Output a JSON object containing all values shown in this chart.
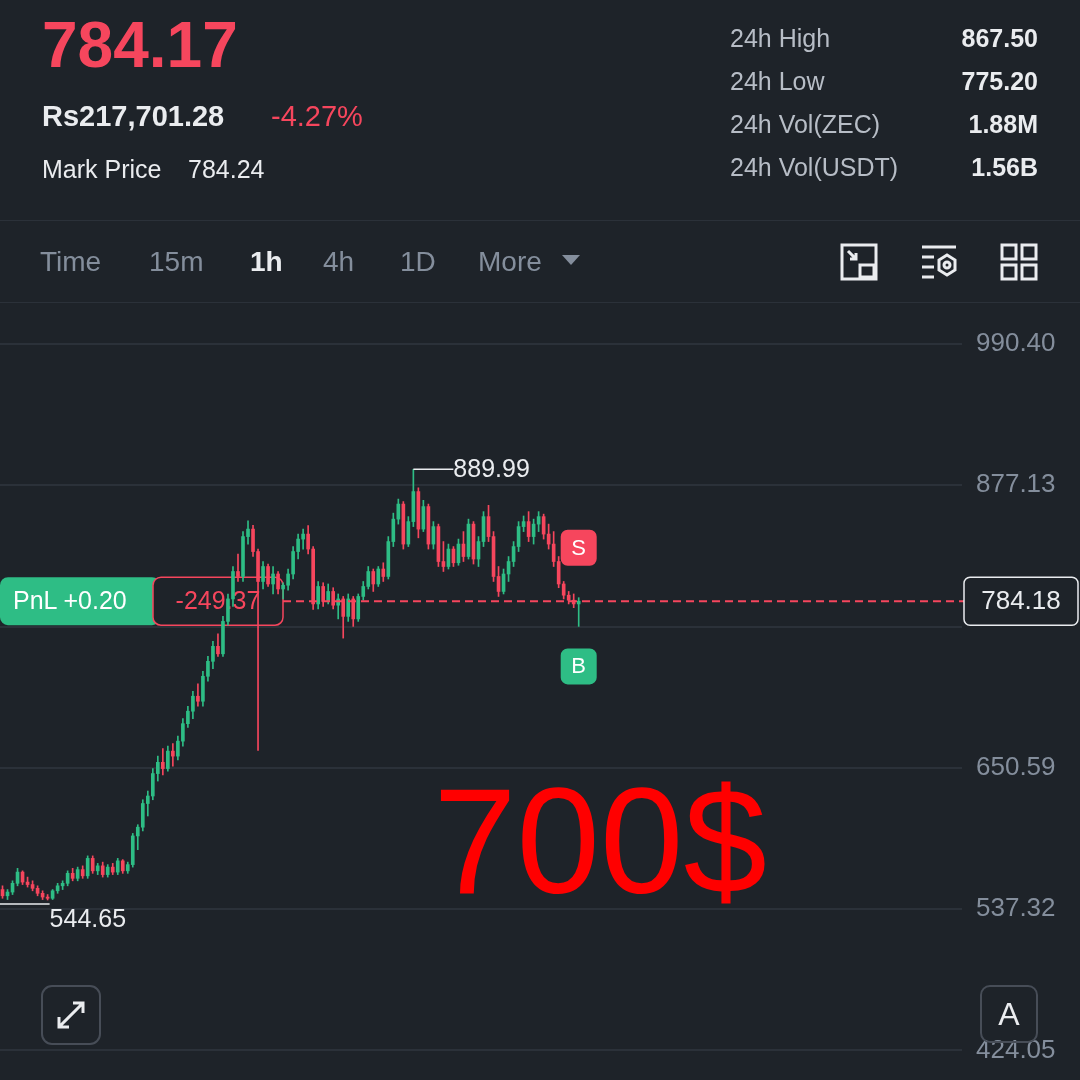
{
  "chart_data": {
    "type": "candlestick",
    "title": "784.17",
    "categories": [
      null,
      null,
      null,
      null,
      null,
      null,
      null,
      null,
      null,
      null,
      null,
      null,
      null,
      null,
      null,
      null,
      null,
      null,
      null,
      null,
      null,
      null,
      null,
      null,
      null,
      null,
      null,
      null,
      null,
      null,
      null,
      null,
      null,
      null,
      null,
      null,
      null,
      null,
      null,
      null,
      null,
      null,
      null,
      null,
      null,
      null,
      null,
      null,
      null,
      null,
      null,
      null,
      null,
      null,
      null,
      null,
      null,
      null,
      null,
      null,
      null,
      null,
      null,
      null,
      null,
      null,
      null,
      null,
      null,
      null,
      null,
      null,
      null,
      null,
      null,
      null,
      null,
      null,
      null,
      null,
      null,
      null,
      null,
      null,
      null,
      null,
      null,
      null,
      null,
      null,
      null,
      null,
      null,
      null,
      null,
      null,
      null,
      null,
      null,
      null,
      null,
      null,
      null,
      null,
      null,
      null,
      null,
      null,
      null,
      null,
      null,
      null,
      null,
      null,
      null,
      null,
      null,
      null,
      null,
      null,
      null,
      null,
      null,
      null,
      null,
      null,
      null,
      null,
      null,
      null,
      null,
      null,
      null,
      null,
      null,
      null,
      null,
      null,
      null,
      null,
      null,
      null,
      null,
      null,
      null,
      null,
      null,
      null,
      null,
      null,
      null,
      null,
      null,
      null,
      null,
      null,
      null,
      null,
      null,
      null,
      null,
      null,
      null,
      null,
      null,
      null,
      null,
      null,
      null,
      null,
      null,
      null,
      null,
      null,
      null,
      null,
      null,
      null,
      null,
      null,
      null,
      null,
      null,
      null,
      null,
      null,
      null,
      null,
      null,
      null,
      null,
      null
    ],
    "ohlc": [
      [
        553,
        556,
        546,
        548
      ],
      [
        548,
        553,
        545,
        551
      ],
      [
        551,
        560,
        549,
        558
      ],
      [
        558,
        570,
        556,
        567
      ],
      [
        567,
        568,
        557,
        559
      ],
      [
        559,
        563,
        555,
        557
      ],
      [
        557,
        560,
        552,
        554
      ],
      [
        554,
        556,
        548,
        550
      ],
      [
        550,
        552,
        545,
        547
      ],
      [
        547,
        549,
        544.65,
        546
      ],
      [
        546,
        553,
        545,
        552
      ],
      [
        552,
        558,
        550,
        556
      ],
      [
        556,
        560,
        553,
        558
      ],
      [
        558,
        568,
        556,
        566
      ],
      [
        566,
        570,
        560,
        562
      ],
      [
        562,
        571,
        560,
        569
      ],
      [
        569,
        572,
        562,
        564
      ],
      [
        564,
        580,
        562,
        578
      ],
      [
        578,
        580,
        566,
        568
      ],
      [
        568,
        574,
        565,
        572
      ],
      [
        572,
        575,
        563,
        565
      ],
      [
        565,
        573,
        563,
        571
      ],
      [
        571,
        574,
        565,
        567
      ],
      [
        567,
        578,
        565,
        576
      ],
      [
        576,
        577,
        566,
        568
      ],
      [
        568,
        575,
        566,
        573
      ],
      [
        573,
        598,
        571,
        596
      ],
      [
        596,
        605,
        585,
        603
      ],
      [
        603,
        625,
        600,
        622
      ],
      [
        622,
        632,
        612,
        628
      ],
      [
        628,
        650,
        625,
        646
      ],
      [
        646,
        660,
        640,
        655
      ],
      [
        655,
        666,
        645,
        650
      ],
      [
        650,
        668,
        648,
        664
      ],
      [
        664,
        670,
        652,
        660
      ],
      [
        660,
        676,
        657,
        672
      ],
      [
        672,
        690,
        668,
        686
      ],
      [
        686,
        700,
        683,
        696
      ],
      [
        696,
        712,
        690,
        708
      ],
      [
        708,
        718,
        700,
        704
      ],
      [
        704,
        728,
        700,
        724
      ],
      [
        724,
        740,
        720,
        736
      ],
      [
        736,
        752,
        730,
        748
      ],
      [
        748,
        758,
        740,
        742
      ],
      [
        742,
        772,
        740,
        768
      ],
      [
        768,
        790,
        765,
        786
      ],
      [
        786,
        812,
        780,
        808
      ],
      [
        808,
        822,
        800,
        804
      ],
      [
        804,
        840,
        800,
        836
      ],
      [
        836,
        848.6,
        830,
        842
      ],
      [
        842,
        845,
        820,
        824
      ],
      [
        824,
        826,
        664.5,
        800
      ],
      [
        800,
        816,
        794,
        812
      ],
      [
        812,
        814,
        796,
        798
      ],
      [
        798,
        812,
        790,
        806
      ],
      [
        806,
        808,
        790,
        794
      ],
      [
        794,
        799,
        786,
        797
      ],
      [
        797,
        810,
        793,
        806
      ],
      [
        806,
        828,
        802,
        824
      ],
      [
        824,
        838,
        818,
        834
      ],
      [
        834,
        842,
        826,
        838
      ],
      [
        838,
        844.8,
        822,
        826
      ],
      [
        826,
        828,
        777.7,
        782
      ],
      [
        782,
        800,
        778,
        796
      ],
      [
        796,
        799,
        780,
        784
      ],
      [
        784,
        798,
        782,
        792
      ],
      [
        792,
        795,
        778,
        781
      ],
      [
        781,
        790,
        770,
        786
      ],
      [
        786,
        788,
        754.6,
        772
      ],
      [
        772,
        790,
        768,
        786
      ],
      [
        786,
        788,
        764,
        770
      ],
      [
        770,
        790,
        768,
        788
      ],
      [
        788,
        800,
        785,
        796
      ],
      [
        796,
        812,
        794,
        808
      ],
      [
        808,
        810,
        792,
        798
      ],
      [
        798,
        812,
        796,
        810
      ],
      [
        810,
        815,
        800,
        804
      ],
      [
        804,
        836,
        802,
        832
      ],
      [
        832,
        854.8,
        828,
        850
      ],
      [
        850,
        866,
        846,
        862
      ],
      [
        862,
        864,
        826,
        830
      ],
      [
        830,
        852,
        828,
        848
      ],
      [
        848,
        889.99,
        844,
        872
      ],
      [
        872,
        875,
        835,
        842
      ],
      [
        842,
        865,
        840,
        860
      ],
      [
        860,
        862,
        826,
        830
      ],
      [
        830,
        848,
        826,
        844
      ],
      [
        844,
        846,
        812,
        816
      ],
      [
        816,
        832,
        808,
        812
      ],
      [
        812,
        830,
        810,
        826
      ],
      [
        826,
        828,
        812,
        815
      ],
      [
        815,
        834,
        813,
        830
      ],
      [
        830,
        840,
        816,
        820
      ],
      [
        820,
        850,
        818,
        846
      ],
      [
        846,
        848,
        814,
        818
      ],
      [
        818,
        836,
        812,
        832
      ],
      [
        832,
        856,
        828,
        852
      ],
      [
        852,
        861,
        832,
        836
      ],
      [
        836,
        840,
        800,
        804
      ],
      [
        804,
        812,
        788,
        792
      ],
      [
        792,
        810,
        790,
        806
      ],
      [
        806,
        820,
        800,
        816
      ],
      [
        816,
        832,
        812,
        828
      ],
      [
        828,
        848,
        824,
        844
      ],
      [
        844,
        852.5,
        840,
        848
      ],
      [
        848,
        856,
        832,
        836
      ],
      [
        836,
        850,
        830,
        846
      ],
      [
        846,
        856,
        840,
        852
      ],
      [
        852,
        854,
        834,
        838
      ],
      [
        838,
        846,
        826,
        830
      ],
      [
        830,
        840,
        812,
        816
      ],
      [
        816,
        820,
        795,
        798
      ],
      [
        798,
        800,
        786,
        789
      ],
      [
        789,
        792,
        782,
        785
      ],
      [
        785,
        790,
        779,
        782
      ],
      [
        782,
        787,
        764,
        784.18
      ],
      null,
      null,
      null,
      null,
      null,
      null,
      null,
      null,
      null,
      null,
      null,
      null,
      null,
      null,
      null,
      null,
      null,
      null,
      null,
      null,
      null,
      null,
      null,
      null,
      null,
      null,
      null,
      null,
      null,
      null,
      null,
      null,
      null,
      null,
      null,
      null,
      null,
      null,
      null,
      null,
      null,
      null,
      null,
      null,
      null,
      null,
      null,
      null,
      null,
      null,
      null,
      null,
      null,
      null,
      null,
      null,
      null,
      null,
      null,
      null,
      null,
      null,
      null,
      null,
      null,
      null,
      null,
      null,
      null,
      null,
      null,
      null,
      null,
      null,
      null,
      null
    ],
    "ylim": [
      424.05,
      990.4
    ],
    "yticks": [
      {
        "value": 990.4,
        "label": "990.40"
      },
      {
        "value": 877.13,
        "label": "877.13"
      },
      {
        "value": 763.86,
        "label": null
      },
      {
        "value": 650.59,
        "label": "650.59"
      },
      {
        "value": 537.32,
        "label": "537.32"
      },
      {
        "value": 424.05,
        "label": "424.05"
      }
    ],
    "grid": "y",
    "tick_labels": "y",
    "ref_lines": [
      {
        "axis": "y",
        "value": 784.18,
        "label": "784.18",
        "color": "#f6465d",
        "line_style": "dashed"
      }
    ],
    "annotations": [
      "Rs217,701.28",
      "-4.27%",
      "Mark Price",
      "784.24",
      "24h High",
      "867.50",
      "24h Low",
      "775.20",
      "24h Vol(ZEC)",
      "1.88M",
      "24h Vol(USDT)",
      "1.56B",
      "Time",
      "15m",
      "1h",
      "4h",
      "1D",
      "More",
      "PnL +0.20",
      "-249.37",
      "S",
      "B",
      "700$",
      "A",
      "889.99",
      "544.65"
    ]
  }
}
